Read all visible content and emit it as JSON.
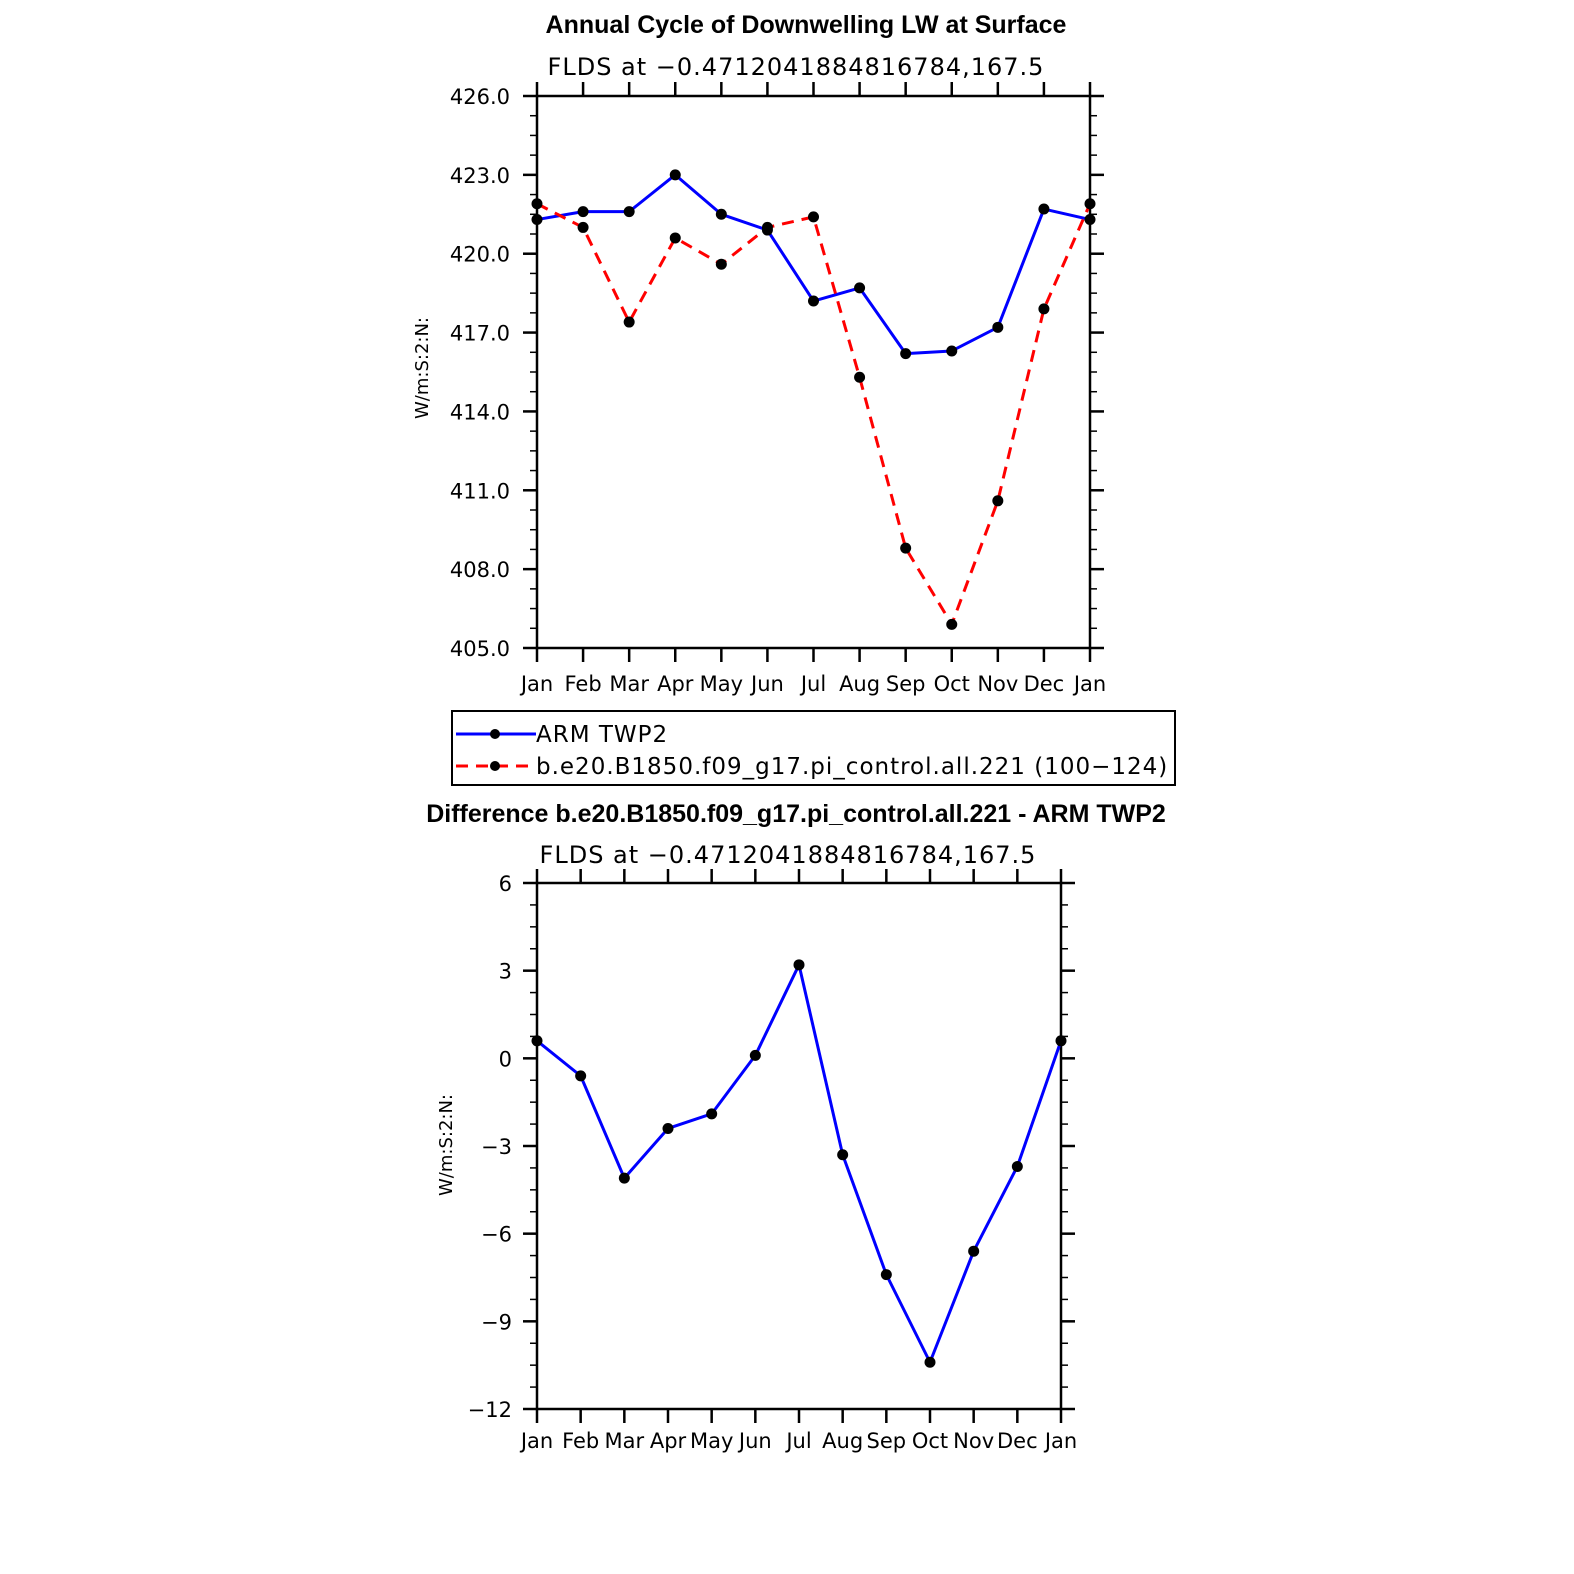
{
  "chart_data": [
    {
      "type": "line",
      "title": "Annual Cycle of Downwelling LW at Surface",
      "subtitle": "FLDS at −0.4712041884816784,167.5",
      "ylabel": "W/m:S:2:N:",
      "categories": [
        "Jan",
        "Feb",
        "Mar",
        "Apr",
        "May",
        "Jun",
        "Jul",
        "Aug",
        "Sep",
        "Oct",
        "Nov",
        "Dec",
        "Jan"
      ],
      "ylim": [
        405.0,
        426.0
      ],
      "yticks": [
        "405.0",
        "408.0",
        "411.0",
        "414.0",
        "417.0",
        "420.0",
        "423.0",
        "426.0"
      ],
      "series": [
        {
          "name": "ARM TWP2",
          "color": "#0000ff",
          "dash": "solid",
          "values": [
            421.3,
            421.6,
            421.6,
            423.0,
            421.5,
            420.9,
            418.2,
            418.7,
            416.2,
            416.3,
            417.2,
            421.7,
            421.3
          ]
        },
        {
          "name": "b.e20.B1850.f09_g17.pi_control.all.221 (100−124)",
          "color": "#ff0000",
          "dash": "dashed",
          "values": [
            421.9,
            421.0,
            417.4,
            420.6,
            419.6,
            421.0,
            421.4,
            415.3,
            408.8,
            405.9,
            410.6,
            417.9,
            421.9
          ]
        }
      ],
      "legend": "below"
    },
    {
      "type": "line",
      "title": "Difference b.e20.B1850.f09_g17.pi_control.all.221 - ARM TWP2",
      "subtitle": "FLDS at −0.4712041884816784,167.5",
      "ylabel": "W/m:S:2:N:",
      "categories": [
        "Jan",
        "Feb",
        "Mar",
        "Apr",
        "May",
        "Jun",
        "Jul",
        "Aug",
        "Sep",
        "Oct",
        "Nov",
        "Dec",
        "Jan"
      ],
      "ylim": [
        -12,
        6
      ],
      "yticks": [
        "−12",
        "−9",
        "−6",
        "−3",
        "0",
        "3",
        "6"
      ],
      "series": [
        {
          "color": "#0000ff",
          "dash": "solid",
          "values": [
            0.6,
            -0.6,
            -4.1,
            -2.4,
            -1.9,
            0.1,
            3.2,
            -3.3,
            -7.4,
            -10.4,
            -6.6,
            -3.7,
            0.6
          ]
        }
      ]
    }
  ]
}
